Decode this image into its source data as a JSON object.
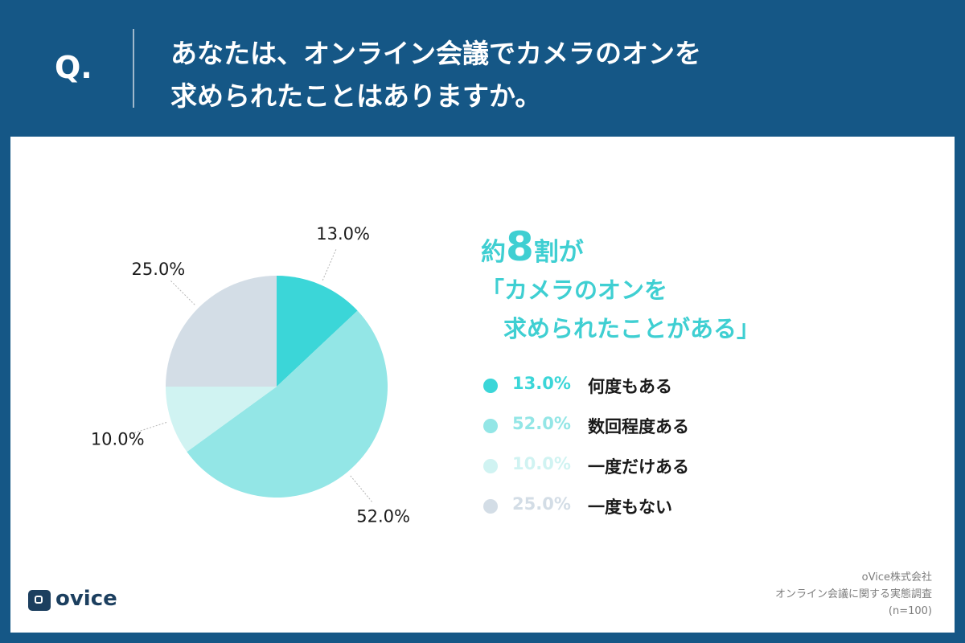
{
  "header": {
    "q_mark": "Q.",
    "question_line_1": "あなたは、オンライン会議でカメラのオンを",
    "question_line_2": "求められたことはありますか。"
  },
  "headline": {
    "prefix": "約",
    "big": "8",
    "suffix": "割が",
    "quote_line_1": "「カメラのオンを",
    "quote_line_2": "求められたことがある」"
  },
  "chart_data": {
    "type": "pie",
    "start_angle_deg": 0,
    "direction": "clockwise",
    "slices": [
      {
        "label": "何度もある",
        "value": 13.0,
        "display": "13.0%",
        "color": "#3bd6d8"
      },
      {
        "label": "数回程度ある",
        "value": 52.0,
        "display": "52.0%",
        "color": "#93e6e6"
      },
      {
        "label": "一度だけある",
        "value": 10.0,
        "display": "10.0%",
        "color": "#d0f3f2"
      },
      {
        "label": "一度もない",
        "value": 25.0,
        "display": "25.0%",
        "color": "#d3dde6"
      }
    ]
  },
  "legend": [
    {
      "pct": "13.0%",
      "label": "何度もある",
      "color": "#3bd6d8"
    },
    {
      "pct": "52.0%",
      "label": "数回程度ある",
      "color": "#93e6e6"
    },
    {
      "pct": "10.0%",
      "label": "一度だけある",
      "color": "#d0f3f2"
    },
    {
      "pct": "25.0%",
      "label": "一度もない",
      "color": "#d3dde6"
    }
  ],
  "footer": {
    "logo_text": "ovice",
    "source_line_1": "oVice株式会社",
    "source_line_2": "オンライン会議に関する実態調査",
    "source_line_3": "(n=100)"
  },
  "colors": {
    "background": "#155786",
    "accent": "#3fcfd2",
    "logo": "#1c3f5f"
  }
}
